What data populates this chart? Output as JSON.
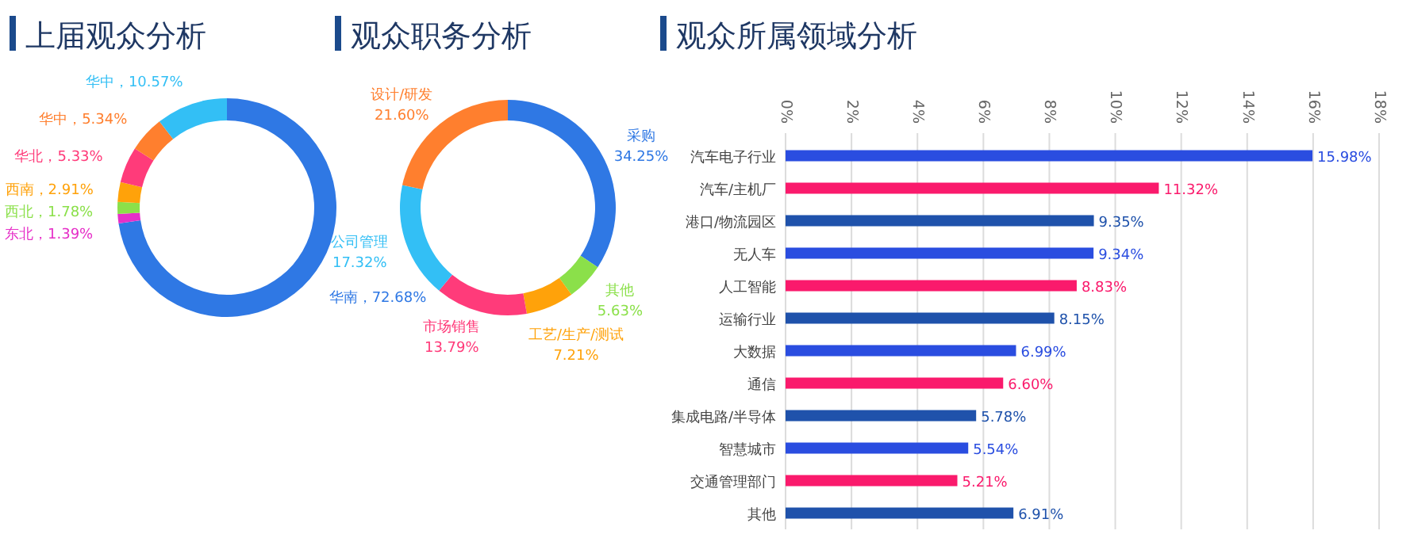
{
  "chart_data": [
    {
      "type": "donut",
      "title": "上届观众分析",
      "categories": [
        "华南",
        "东北",
        "西北",
        "西南",
        "华北",
        "华中",
        "华中"
      ],
      "values": [
        72.68,
        1.39,
        1.78,
        2.91,
        5.33,
        5.34,
        10.57
      ],
      "colors": [
        "#2f78e4",
        "#e62fc8",
        "#8be04a",
        "#ffa20a",
        "#ff3b7a",
        "#ff7f2e",
        "#33bff5"
      ],
      "value_labels": [
        "，72.68%",
        "，1.39%",
        "，1.78%",
        "，2.91%",
        "，5.33%",
        "，5.34%",
        "，10.57%"
      ]
    },
    {
      "type": "donut",
      "title": "观众职务分析",
      "categories": [
        "采购",
        "其他",
        "工艺/生产/测试",
        "市场销售",
        "公司管理",
        "设计/研发"
      ],
      "values": [
        34.25,
        5.63,
        7.21,
        13.79,
        17.32,
        21.6
      ],
      "colors": [
        "#2f78e4",
        "#8be04a",
        "#ffa20a",
        "#ff3b7a",
        "#33bff5",
        "#ff7f2e"
      ],
      "value_labels": [
        "34.25%",
        "5.63%",
        "7.21%",
        "13.79%",
        "17.32%",
        "21.60%"
      ]
    },
    {
      "type": "bar",
      "orientation": "horizontal",
      "title": "观众所属领域分析",
      "categories": [
        "汽车电子行业",
        "汽车/主机厂",
        "港口/物流园区",
        "无人车",
        "人工智能",
        "运输行业",
        "大数据",
        "通信",
        "集成电路/半导体",
        "智慧城市",
        "交通管理部门",
        "其他"
      ],
      "values": [
        15.98,
        11.32,
        9.35,
        9.34,
        8.83,
        8.15,
        6.99,
        6.6,
        5.78,
        5.54,
        5.21,
        6.91
      ],
      "colors": [
        "#2a4de0",
        "#fa1a6c",
        "#1f52ab",
        "#2a4de0",
        "#fa1a6c",
        "#1f52ab",
        "#2a4de0",
        "#fa1a6c",
        "#1f52ab",
        "#2a4de0",
        "#fa1a6c",
        "#1f52ab"
      ],
      "value_labels": [
        "15.98%",
        "11.32%",
        "9.35%",
        "9.34%",
        "8.83%",
        "8.15%",
        "6.99%",
        "6.60%",
        "5.78%",
        "5.54%",
        "5.21%",
        "6.91%"
      ],
      "xlim": [
        0,
        18
      ],
      "xticks": [
        {
          "value": 0,
          "label": "0%"
        },
        {
          "value": 2,
          "label": "2%"
        },
        {
          "value": 4,
          "label": "4%"
        },
        {
          "value": 6,
          "label": "6%"
        },
        {
          "value": 8,
          "label": "8%"
        },
        {
          "value": 10,
          "label": "10%"
        },
        {
          "value": 12,
          "label": "12%"
        },
        {
          "value": 14,
          "label": "14%"
        },
        {
          "value": 16,
          "label": "16%"
        },
        {
          "value": 18,
          "label": "18%"
        }
      ],
      "grid": "x"
    }
  ]
}
